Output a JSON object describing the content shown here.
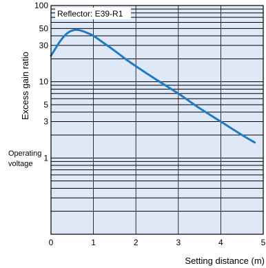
{
  "chart_data": {
    "type": "line",
    "ylabel": "Excess gain ratio",
    "xlabel": "Setting distance (m)",
    "annotation": "Reflector: E39-R1",
    "operating_label": [
      "Operating",
      "voltage"
    ],
    "x_ticks": [
      0,
      1,
      2,
      3,
      4,
      5
    ],
    "y_ticks": [
      1,
      3,
      5,
      10,
      30,
      50,
      100
    ],
    "xlim": [
      0,
      5
    ],
    "ylim": [
      0.1,
      100
    ],
    "y_scale": "log",
    "grid": true,
    "series": [
      {
        "color": "#1f7bc4",
        "x": [
          0,
          0.1,
          0.2,
          0.3,
          0.4,
          0.5,
          0.6,
          0.7,
          0.8,
          1,
          1.25,
          1.5,
          1.75,
          2,
          2.5,
          3,
          3.5,
          4,
          4.5,
          4.8
        ],
        "y": [
          22,
          27,
          33,
          39,
          44,
          47,
          48,
          47,
          45,
          40,
          32,
          25.5,
          20,
          16,
          10.5,
          7,
          4.5,
          3,
          2,
          1.6
        ]
      }
    ]
  }
}
